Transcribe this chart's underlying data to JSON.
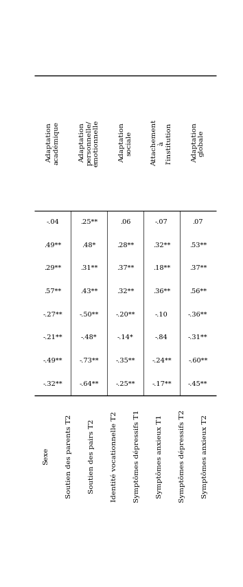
{
  "columns": [
    "Adaptation\nacadémique",
    "Adaptation\npersonnelle/\némotionnelle",
    "Adaptation\nsociale",
    "Attachement\nà\nl'institution",
    "Adaptation\nglobale"
  ],
  "rows": [
    "Sexe",
    "Soutien des parents T2",
    "Soutien des pairs T2",
    "Identité vocationnelle T2",
    "Symptômes dépressifs T1",
    "Symptômes anxieux T1",
    "Symptômes dépressifs T2",
    "Symptômes anxieux T2"
  ],
  "data": [
    [
      "-.04",
      ".25**",
      ".06",
      "-.07",
      ".07"
    ],
    [
      ".49**",
      ".48*",
      ".28**",
      ".32**",
      ".53**"
    ],
    [
      ".29**",
      ".31**",
      ".37**",
      ".18**",
      ".37**"
    ],
    [
      ".57**",
      ".43**",
      ".32**",
      ".36**",
      ".56**"
    ],
    [
      "-.27**",
      "-.50**",
      "-.20**",
      "-.10",
      "-.36**"
    ],
    [
      "-.21**",
      "-.48*",
      "-.14*",
      "-.84",
      "-.31**"
    ],
    [
      "-.49**",
      "-.73**",
      "-.35**",
      "-.24**",
      "-.60**"
    ],
    [
      "-.32**",
      "-.64**",
      "-.25**",
      "-.17**",
      "-.45**"
    ]
  ],
  "bg_color": "#ffffff",
  "text_color": "#000000",
  "data_fontsize": 7.0,
  "header_fontsize": 7.5,
  "row_fontsize": 7.5,
  "fig_width": 3.54,
  "fig_height": 8.55,
  "dpi": 100
}
